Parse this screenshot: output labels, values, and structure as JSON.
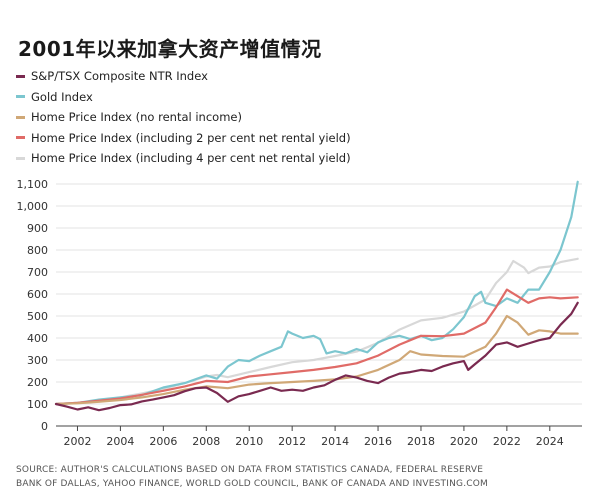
{
  "title": "2001年以来加拿大资产增值情况",
  "legend": [
    {
      "label": "S&P/TSX Composite NTR Index",
      "color": "#7a2a50"
    },
    {
      "label": "Gold Index",
      "color": "#7cc6cf"
    },
    {
      "label": "Home Price Index (no rental income)",
      "color": "#d0a877"
    },
    {
      "label": "Home Price Index (including 2 per cent net rental yield)",
      "color": "#e06b67"
    },
    {
      "label": "Home Price Index (including 4 per cent net rental yield)",
      "color": "#d8d8d8"
    }
  ],
  "source_lines": [
    "SOURCE: AUTHOR'S CALCULATIONS BASED ON DATA FROM STATISTICS CANADA, FEDERAL RESERVE",
    "BANK OF DALLAS, YAHOO FINANCE, WORLD GOLD COUNCIL, BANK OF CANADA AND INVESTING.COM"
  ],
  "chart_data": {
    "type": "line",
    "title": "2001年以来加拿大资产增值情况",
    "xlabel": "",
    "ylabel": "",
    "xlim": [
      2001,
      2025.5
    ],
    "ylim": [
      0,
      1100
    ],
    "grid": true,
    "legend_position": "top-left",
    "x_ticks": [
      2002,
      2004,
      2006,
      2008,
      2010,
      2012,
      2014,
      2016,
      2018,
      2020,
      2022,
      2024
    ],
    "y_ticks": [
      0,
      100,
      200,
      300,
      400,
      500,
      600,
      700,
      800,
      900,
      1000,
      1100
    ],
    "y_tick_labels": [
      "0",
      "100",
      "200",
      "300",
      "400",
      "500",
      "600",
      "700",
      "800",
      "900",
      "1,000",
      "1,100"
    ],
    "series": [
      {
        "name": "Home Price Index (including 4 per cent net rental yield)",
        "color": "#d8d8d8",
        "points": [
          [
            2001,
            100
          ],
          [
            2002,
            105
          ],
          [
            2003,
            115
          ],
          [
            2004,
            130
          ],
          [
            2005,
            148
          ],
          [
            2006,
            168
          ],
          [
            2007,
            195
          ],
          [
            2008,
            225
          ],
          [
            2008.5,
            232
          ],
          [
            2009,
            222
          ],
          [
            2010,
            245
          ],
          [
            2011,
            268
          ],
          [
            2012,
            290
          ],
          [
            2013,
            300
          ],
          [
            2014,
            318
          ],
          [
            2015,
            338
          ],
          [
            2016,
            378
          ],
          [
            2017,
            438
          ],
          [
            2018,
            480
          ],
          [
            2019,
            492
          ],
          [
            2020,
            520
          ],
          [
            2021,
            575
          ],
          [
            2021.5,
            650
          ],
          [
            2022,
            700
          ],
          [
            2022.3,
            750
          ],
          [
            2022.8,
            720
          ],
          [
            2023,
            695
          ],
          [
            2023.5,
            720
          ],
          [
            2024,
            725
          ],
          [
            2024.5,
            745
          ],
          [
            2025.3,
            760
          ]
        ]
      },
      {
        "name": "Gold Index",
        "color": "#7cc6cf",
        "points": [
          [
            2001,
            100
          ],
          [
            2002,
            105
          ],
          [
            2003,
            120
          ],
          [
            2004,
            130
          ],
          [
            2005,
            140
          ],
          [
            2006,
            175
          ],
          [
            2007,
            195
          ],
          [
            2008,
            230
          ],
          [
            2008.5,
            215
          ],
          [
            2009,
            270
          ],
          [
            2009.5,
            300
          ],
          [
            2010,
            295
          ],
          [
            2010.5,
            320
          ],
          [
            2011,
            340
          ],
          [
            2011.5,
            360
          ],
          [
            2011.8,
            430
          ],
          [
            2012,
            420
          ],
          [
            2012.5,
            400
          ],
          [
            2013,
            410
          ],
          [
            2013.3,
            395
          ],
          [
            2013.6,
            330
          ],
          [
            2014,
            340
          ],
          [
            2014.5,
            330
          ],
          [
            2015,
            350
          ],
          [
            2015.5,
            335
          ],
          [
            2016,
            380
          ],
          [
            2016.5,
            400
          ],
          [
            2017,
            410
          ],
          [
            2017.5,
            395
          ],
          [
            2018,
            410
          ],
          [
            2018.5,
            390
          ],
          [
            2019,
            400
          ],
          [
            2019.5,
            440
          ],
          [
            2020,
            495
          ],
          [
            2020.5,
            590
          ],
          [
            2020.8,
            610
          ],
          [
            2021,
            560
          ],
          [
            2021.5,
            545
          ],
          [
            2022,
            580
          ],
          [
            2022.5,
            560
          ],
          [
            2023,
            620
          ],
          [
            2023.5,
            620
          ],
          [
            2024,
            700
          ],
          [
            2024.5,
            800
          ],
          [
            2025,
            950
          ],
          [
            2025.3,
            1110
          ]
        ]
      },
      {
        "name": "Home Price Index (including 2 per cent net rental yield)",
        "color": "#e06b67",
        "points": [
          [
            2001,
            100
          ],
          [
            2002,
            105
          ],
          [
            2003,
            115
          ],
          [
            2004,
            125
          ],
          [
            2005,
            142
          ],
          [
            2006,
            160
          ],
          [
            2007,
            180
          ],
          [
            2008,
            205
          ],
          [
            2009,
            200
          ],
          [
            2010,
            225
          ],
          [
            2011,
            235
          ],
          [
            2012,
            245
          ],
          [
            2013,
            255
          ],
          [
            2014,
            268
          ],
          [
            2015,
            285
          ],
          [
            2016,
            320
          ],
          [
            2017,
            370
          ],
          [
            2018,
            410
          ],
          [
            2019,
            408
          ],
          [
            2020,
            420
          ],
          [
            2021,
            470
          ],
          [
            2021.5,
            540
          ],
          [
            2022,
            620
          ],
          [
            2022.5,
            590
          ],
          [
            2023,
            560
          ],
          [
            2023.5,
            580
          ],
          [
            2024,
            585
          ],
          [
            2024.5,
            580
          ],
          [
            2025.3,
            585
          ]
        ]
      },
      {
        "name": "Home Price Index (no rental income)",
        "color": "#d0a877",
        "points": [
          [
            2001,
            100
          ],
          [
            2002,
            103
          ],
          [
            2003,
            110
          ],
          [
            2004,
            118
          ],
          [
            2005,
            130
          ],
          [
            2006,
            145
          ],
          [
            2007,
            165
          ],
          [
            2008,
            180
          ],
          [
            2009,
            172
          ],
          [
            2010,
            188
          ],
          [
            2011,
            195
          ],
          [
            2012,
            200
          ],
          [
            2013,
            205
          ],
          [
            2014,
            212
          ],
          [
            2015,
            225
          ],
          [
            2016,
            255
          ],
          [
            2017,
            300
          ],
          [
            2017.5,
            340
          ],
          [
            2018,
            325
          ],
          [
            2019,
            318
          ],
          [
            2020,
            315
          ],
          [
            2021,
            360
          ],
          [
            2021.5,
            420
          ],
          [
            2022,
            500
          ],
          [
            2022.5,
            470
          ],
          [
            2023,
            415
          ],
          [
            2023.5,
            435
          ],
          [
            2024,
            430
          ],
          [
            2024.5,
            420
          ],
          [
            2025.3,
            420
          ]
        ]
      },
      {
        "name": "S&P/TSX Composite NTR Index",
        "color": "#7a2a50",
        "points": [
          [
            2001,
            100
          ],
          [
            2001.5,
            88
          ],
          [
            2002,
            75
          ],
          [
            2002.5,
            85
          ],
          [
            2003,
            72
          ],
          [
            2003.5,
            82
          ],
          [
            2004,
            95
          ],
          [
            2004.5,
            98
          ],
          [
            2005,
            112
          ],
          [
            2005.5,
            120
          ],
          [
            2006,
            130
          ],
          [
            2006.5,
            140
          ],
          [
            2007,
            158
          ],
          [
            2007.5,
            172
          ],
          [
            2008,
            175
          ],
          [
            2008.5,
            150
          ],
          [
            2009,
            110
          ],
          [
            2009.5,
            135
          ],
          [
            2010,
            145
          ],
          [
            2010.5,
            160
          ],
          [
            2011,
            175
          ],
          [
            2011.5,
            160
          ],
          [
            2012,
            165
          ],
          [
            2012.5,
            160
          ],
          [
            2013,
            175
          ],
          [
            2013.5,
            185
          ],
          [
            2014,
            210
          ],
          [
            2014.5,
            230
          ],
          [
            2015,
            220
          ],
          [
            2015.5,
            205
          ],
          [
            2016,
            195
          ],
          [
            2016.5,
            220
          ],
          [
            2017,
            238
          ],
          [
            2017.5,
            245
          ],
          [
            2018,
            255
          ],
          [
            2018.5,
            250
          ],
          [
            2019,
            270
          ],
          [
            2019.5,
            285
          ],
          [
            2020,
            295
          ],
          [
            2020.2,
            255
          ],
          [
            2020.5,
            280
          ],
          [
            2021,
            320
          ],
          [
            2021.5,
            370
          ],
          [
            2022,
            380
          ],
          [
            2022.5,
            360
          ],
          [
            2023,
            375
          ],
          [
            2023.5,
            390
          ],
          [
            2024,
            400
          ],
          [
            2024.5,
            460
          ],
          [
            2025,
            510
          ],
          [
            2025.3,
            560
          ]
        ]
      }
    ]
  }
}
